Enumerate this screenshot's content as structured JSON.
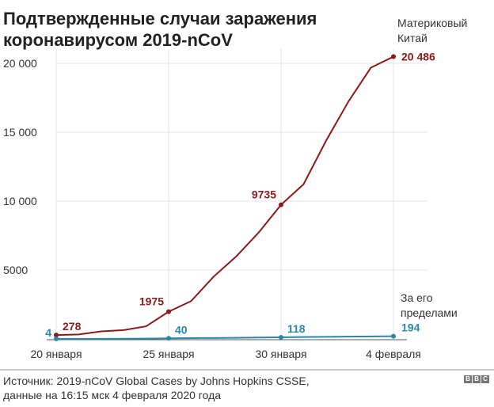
{
  "chart_data": {
    "type": "line",
    "title": "Подтвержденные случаи заражения коронавирусом 2019-nCoV",
    "xlabel": "",
    "ylabel": "",
    "x_tick_labels": [
      "20 января",
      "25 января",
      "30 января",
      "4 февраля"
    ],
    "x_tick_days": [
      0,
      5,
      10,
      15
    ],
    "y_ticks": [
      5000,
      10000,
      15000,
      20000
    ],
    "y_tick_labels": [
      "5000",
      "10 000",
      "15 000",
      "20 000"
    ],
    "ylim": [
      0,
      20000
    ],
    "xlim": [
      0,
      15
    ],
    "grid": true,
    "series": [
      {
        "name": "Материковый Китай",
        "color": "#8b1a1a",
        "values": [
          278,
          326,
          547,
          639,
          916,
          1975,
          2744,
          4515,
          5974,
          7711,
          9735,
          11221,
          14375,
          17238,
          19693,
          20486
        ],
        "labels": [
          {
            "day": 0,
            "text": "278"
          },
          {
            "day": 5,
            "text": "1975"
          },
          {
            "day": 10,
            "text": "9735"
          },
          {
            "day": 15,
            "text": "20 486"
          }
        ]
      },
      {
        "name": "За его пределами",
        "color": "#2a87a8",
        "values": [
          4,
          6,
          8,
          12,
          25,
          40,
          56,
          68,
          82,
          100,
          118,
          135,
          150,
          165,
          180,
          194
        ],
        "labels": [
          {
            "day": 0,
            "text": "4"
          },
          {
            "day": 5,
            "text": "40"
          },
          {
            "day": 10,
            "text": "118"
          },
          {
            "day": 15,
            "text": "194"
          }
        ]
      }
    ]
  },
  "legend": {
    "china_line1": "Материковый",
    "china_line2": "Китай",
    "outside_line1": "За его",
    "outside_line2": "пределами"
  },
  "title_line1": "Подтвержденные случаи заражения",
  "title_line2": "коронавирусом 2019-nCoV",
  "footer": {
    "line1": "Источник: 2019-nCoV Global Cases by Johns Hopkins CSSE,",
    "line2": "данные на 16:15 мск 4 февраля 2020 года"
  },
  "logo": "BBC"
}
